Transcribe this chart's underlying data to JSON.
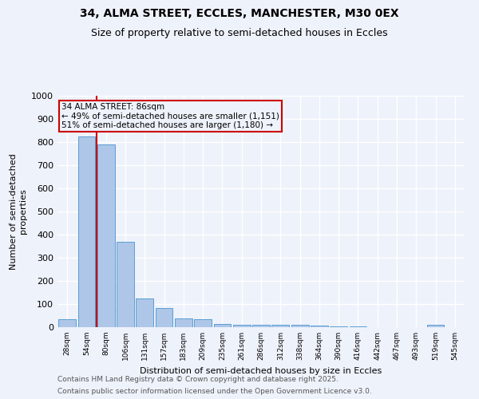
{
  "title1": "34, ALMA STREET, ECCLES, MANCHESTER, M30 0EX",
  "title2": "Size of property relative to semi-detached houses in Eccles",
  "xlabel": "Distribution of semi-detached houses by size in Eccles",
  "ylabel": "Number of semi-detached\nproperties",
  "categories": [
    "28sqm",
    "54sqm",
    "80sqm",
    "106sqm",
    "131sqm",
    "157sqm",
    "183sqm",
    "209sqm",
    "235sqm",
    "261sqm",
    "286sqm",
    "312sqm",
    "338sqm",
    "364sqm",
    "390sqm",
    "416sqm",
    "442sqm",
    "467sqm",
    "493sqm",
    "519sqm",
    "545sqm"
  ],
  "values": [
    35,
    825,
    790,
    370,
    125,
    83,
    37,
    33,
    15,
    10,
    10,
    10,
    10,
    7,
    5,
    3,
    0,
    0,
    0,
    10,
    0
  ],
  "bar_color": "#aec6e8",
  "bar_edge_color": "#5a9fd4",
  "vline_x": 1.5,
  "vline_color": "#cc0000",
  "annotation_title": "34 ALMA STREET: 86sqm",
  "annotation_line1": "← 49% of semi-detached houses are smaller (1,151)",
  "annotation_line2": "51% of semi-detached houses are larger (1,180) →",
  "annotation_box_color": "#cc0000",
  "ylim": [
    0,
    1000
  ],
  "yticks": [
    0,
    100,
    200,
    300,
    400,
    500,
    600,
    700,
    800,
    900,
    1000
  ],
  "footer1": "Contains HM Land Registry data © Crown copyright and database right 2025.",
  "footer2": "Contains public sector information licensed under the Open Government Licence v3.0.",
  "bg_color": "#eef2fb",
  "grid_color": "#ffffff"
}
